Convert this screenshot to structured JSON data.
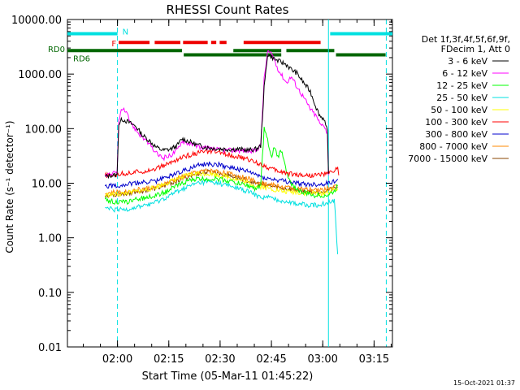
{
  "chart_data": {
    "type": "line",
    "title": "RHESSI Count Rates",
    "xlabel": "Start Time (05-Mar-11 01:45:22)",
    "ylabel": "Count Rate (s⁻¹ detector⁻¹)",
    "yscale": "log",
    "ylim": [
      0.01,
      10000
    ],
    "xlim_minutes": [
      0,
      95
    ],
    "x_ticks": [
      {
        "label": "02:00",
        "min": 14.63
      },
      {
        "label": "02:15",
        "min": 29.63
      },
      {
        "label": "02:30",
        "min": 44.63
      },
      {
        "label": "02:45",
        "min": 59.63
      },
      {
        "label": "03:00",
        "min": 74.63
      },
      {
        "label": "03:15",
        "min": 89.63
      }
    ],
    "y_ticks": [
      {
        "label": "0.01",
        "v": 0.01
      },
      {
        "label": "0.10",
        "v": 0.1
      },
      {
        "label": "1.00",
        "v": 1
      },
      {
        "label": "10.00",
        "v": 10
      },
      {
        "label": "100.00",
        "v": 100
      },
      {
        "label": "1000.00",
        "v": 1000
      },
      {
        "label": "10000.00",
        "v": 10000
      }
    ],
    "legend_position": "right",
    "legend_header": [
      "Det 1f,3f,4f,5f,6f,9f,",
      "FDecim 1, Att 0"
    ],
    "series": [
      {
        "name": "3 - 6 keV",
        "color": "#000000",
        "points": [
          [
            11,
            13
          ],
          [
            12.5,
            14
          ],
          [
            14.5,
            14
          ],
          [
            15,
            120
          ],
          [
            16,
            150
          ],
          [
            18,
            130
          ],
          [
            20,
            110
          ],
          [
            22,
            75
          ],
          [
            24,
            60
          ],
          [
            26,
            45
          ],
          [
            28,
            40
          ],
          [
            30,
            42
          ],
          [
            32,
            48
          ],
          [
            33.5,
            65
          ],
          [
            35,
            60
          ],
          [
            38,
            50
          ],
          [
            41,
            45
          ],
          [
            44,
            43
          ],
          [
            47,
            42
          ],
          [
            50,
            42
          ],
          [
            53,
            40
          ],
          [
            55,
            42
          ],
          [
            56.5,
            48
          ],
          [
            57.5,
            550
          ],
          [
            58.5,
            2300
          ],
          [
            60,
            2000
          ],
          [
            61,
            1800
          ],
          [
            62,
            1700
          ],
          [
            64,
            1500
          ],
          [
            65.5,
            1200
          ],
          [
            67,
            1050
          ],
          [
            69,
            700
          ],
          [
            71,
            480
          ],
          [
            73,
            220
          ],
          [
            74,
            165
          ],
          [
            75,
            155
          ],
          [
            76,
            85
          ],
          [
            76.3,
            15
          ]
        ]
      },
      {
        "name": "6 - 12 keV",
        "color": "#ff00ff",
        "points": [
          [
            11,
            14
          ],
          [
            12.5,
            15
          ],
          [
            14.5,
            15
          ],
          [
            15,
            150
          ],
          [
            16,
            230
          ],
          [
            17,
            200
          ],
          [
            19,
            115
          ],
          [
            21,
            80
          ],
          [
            23,
            60
          ],
          [
            26,
            35
          ],
          [
            28,
            29
          ],
          [
            30,
            32
          ],
          [
            32,
            40
          ],
          [
            33.5,
            60
          ],
          [
            35,
            55
          ],
          [
            38,
            47
          ],
          [
            41,
            43
          ],
          [
            44,
            41
          ],
          [
            47,
            40
          ],
          [
            50,
            40
          ],
          [
            53,
            39
          ],
          [
            55,
            40
          ],
          [
            56.5,
            50
          ],
          [
            57.5,
            800
          ],
          [
            58.5,
            2600
          ],
          [
            60,
            2200
          ],
          [
            61,
            1500
          ],
          [
            62,
            1100
          ],
          [
            64,
            700
          ],
          [
            65.5,
            900
          ],
          [
            67,
            600
          ],
          [
            69,
            380
          ],
          [
            71,
            230
          ],
          [
            73,
            160
          ],
          [
            74,
            115
          ],
          [
            75,
            120
          ],
          [
            76,
            80
          ],
          [
            76.3,
            14
          ]
        ]
      },
      {
        "name": "12 - 25 keV",
        "color": "#00ff00",
        "points": [
          [
            11,
            5
          ],
          [
            14,
            4.5
          ],
          [
            17,
            4.5
          ],
          [
            20,
            5
          ],
          [
            23,
            5.5
          ],
          [
            26,
            6
          ],
          [
            29,
            7
          ],
          [
            32,
            9
          ],
          [
            35,
            11
          ],
          [
            38,
            12
          ],
          [
            41,
            12
          ],
          [
            44,
            12
          ],
          [
            47,
            11
          ],
          [
            50,
            10
          ],
          [
            53,
            9
          ],
          [
            55,
            8
          ],
          [
            56.5,
            9
          ],
          [
            57.5,
            100
          ],
          [
            58.5,
            60
          ],
          [
            59.5,
            30
          ],
          [
            60.5,
            45
          ],
          [
            61.5,
            30
          ],
          [
            62.5,
            40
          ],
          [
            63.5,
            25
          ],
          [
            64.5,
            12
          ],
          [
            66,
            9
          ],
          [
            68,
            7
          ],
          [
            70,
            6.5
          ],
          [
            72,
            6
          ],
          [
            74,
            6
          ],
          [
            76,
            6
          ],
          [
            78,
            7
          ],
          [
            79,
            9
          ]
        ]
      },
      {
        "name": "25 - 50 keV",
        "color": "#00e0e0",
        "points": [
          [
            11,
            3.5
          ],
          [
            14,
            3.2
          ],
          [
            17,
            3.3
          ],
          [
            20,
            3.6
          ],
          [
            23,
            4
          ],
          [
            26,
            4.5
          ],
          [
            29,
            5.5
          ],
          [
            32,
            7
          ],
          [
            35,
            8.5
          ],
          [
            38,
            10
          ],
          [
            41,
            10.5
          ],
          [
            44,
            10
          ],
          [
            47,
            9
          ],
          [
            50,
            8
          ],
          [
            53,
            7
          ],
          [
            55,
            6
          ],
          [
            57,
            5.5
          ],
          [
            59,
            5.5
          ],
          [
            61,
            5
          ],
          [
            63,
            4.8
          ],
          [
            65,
            4.5
          ],
          [
            67,
            4.2
          ],
          [
            70,
            4
          ],
          [
            72,
            4
          ],
          [
            74,
            4
          ],
          [
            76,
            4.5
          ],
          [
            78,
            5
          ],
          [
            79,
            0.5
          ]
        ]
      },
      {
        "name": "50 - 100 keV",
        "color": "#ffff00",
        "points": [
          [
            11,
            6
          ],
          [
            14,
            6.2
          ],
          [
            17,
            6.5
          ],
          [
            20,
            7
          ],
          [
            23,
            7.5
          ],
          [
            26,
            8.5
          ],
          [
            29,
            10
          ],
          [
            32,
            12
          ],
          [
            35,
            14
          ],
          [
            38,
            15
          ],
          [
            41,
            15
          ],
          [
            44,
            14
          ],
          [
            47,
            13
          ],
          [
            50,
            11.5
          ],
          [
            53,
            10
          ],
          [
            55,
            9
          ],
          [
            57,
            8.5
          ],
          [
            59,
            8
          ],
          [
            61,
            7.5
          ],
          [
            63,
            7
          ],
          [
            65,
            7
          ],
          [
            67,
            6.8
          ],
          [
            70,
            6.5
          ],
          [
            72,
            6.5
          ],
          [
            74,
            6.5
          ],
          [
            76,
            6.8
          ],
          [
            78,
            7.5
          ],
          [
            79,
            8
          ]
        ]
      },
      {
        "name": "100 - 300 keV",
        "color": "#ff0000",
        "points": [
          [
            11,
            14
          ],
          [
            12.5,
            13.5
          ],
          [
            14,
            14.5
          ],
          [
            17,
            15
          ],
          [
            20,
            16
          ],
          [
            23,
            17
          ],
          [
            26,
            18.5
          ],
          [
            29,
            22
          ],
          [
            32,
            27
          ],
          [
            35,
            32
          ],
          [
            38,
            36
          ],
          [
            41,
            38
          ],
          [
            44,
            37
          ],
          [
            47,
            34
          ],
          [
            50,
            30
          ],
          [
            53,
            27
          ],
          [
            55,
            24
          ],
          [
            57,
            22
          ],
          [
            59,
            19
          ],
          [
            61,
            17
          ],
          [
            63,
            16
          ],
          [
            65,
            15
          ],
          [
            67,
            14.5
          ],
          [
            70,
            14
          ],
          [
            72,
            14
          ],
          [
            74,
            14.5
          ],
          [
            76,
            15
          ],
          [
            78,
            17
          ],
          [
            79,
            20
          ],
          [
            79.3,
            14
          ]
        ]
      },
      {
        "name": "300 - 800 keV",
        "color": "#0000cc",
        "points": [
          [
            11,
            9
          ],
          [
            14,
            9
          ],
          [
            17,
            9.5
          ],
          [
            20,
            10
          ],
          [
            23,
            10.5
          ],
          [
            26,
            11
          ],
          [
            29,
            13
          ],
          [
            32,
            15.5
          ],
          [
            35,
            18
          ],
          [
            38,
            21
          ],
          [
            41,
            22.5
          ],
          [
            44,
            22
          ],
          [
            47,
            20
          ],
          [
            50,
            18
          ],
          [
            53,
            16
          ],
          [
            55,
            14.5
          ],
          [
            57,
            13
          ],
          [
            59,
            12
          ],
          [
            61,
            11.5
          ],
          [
            63,
            11
          ],
          [
            65,
            10.5
          ],
          [
            67,
            10
          ],
          [
            70,
            9.5
          ],
          [
            72,
            9.5
          ],
          [
            74,
            9.5
          ],
          [
            76,
            10
          ],
          [
            78,
            11
          ],
          [
            79,
            12
          ]
        ]
      },
      {
        "name": "800 - 7000 keV",
        "color": "#ff8800",
        "points": [
          [
            11,
            6.5
          ],
          [
            14,
            6.8
          ],
          [
            17,
            7
          ],
          [
            20,
            7.5
          ],
          [
            23,
            8
          ],
          [
            26,
            8.5
          ],
          [
            29,
            10
          ],
          [
            32,
            12
          ],
          [
            35,
            14
          ],
          [
            38,
            16
          ],
          [
            41,
            17
          ],
          [
            44,
            16.5
          ],
          [
            47,
            15
          ],
          [
            50,
            13.5
          ],
          [
            53,
            12
          ],
          [
            55,
            11
          ],
          [
            57,
            10
          ],
          [
            59,
            9.5
          ],
          [
            61,
            9
          ],
          [
            63,
            8.5
          ],
          [
            65,
            8.2
          ],
          [
            67,
            8
          ],
          [
            70,
            7.5
          ],
          [
            72,
            7.5
          ],
          [
            74,
            7.5
          ],
          [
            76,
            8
          ],
          [
            78,
            8.5
          ],
          [
            79,
            9
          ]
        ]
      },
      {
        "name": "7000 - 15000 keV",
        "color": "#884400",
        "points": [
          [
            11,
            6
          ],
          [
            14,
            6.2
          ],
          [
            17,
            6.5
          ],
          [
            20,
            7
          ],
          [
            23,
            7.5
          ],
          [
            26,
            8
          ],
          [
            29,
            9.5
          ],
          [
            32,
            11
          ],
          [
            35,
            13
          ],
          [
            38,
            15
          ],
          [
            41,
            16
          ],
          [
            44,
            15.5
          ],
          [
            47,
            14
          ],
          [
            50,
            12.5
          ],
          [
            53,
            11
          ],
          [
            55,
            10
          ],
          [
            57,
            9.5
          ],
          [
            59,
            9
          ],
          [
            61,
            8.5
          ],
          [
            63,
            8
          ],
          [
            65,
            7.8
          ],
          [
            67,
            7.5
          ],
          [
            70,
            7
          ],
          [
            72,
            7
          ],
          [
            74,
            7
          ],
          [
            76,
            7.5
          ],
          [
            78,
            8
          ],
          [
            79,
            8.5
          ]
        ]
      }
    ],
    "state_bars": [
      {
        "label": "N",
        "color": "#00e0e0",
        "level": 5500,
        "segments": [
          [
            0,
            14.63
          ],
          [
            76.8,
            95
          ]
        ]
      },
      {
        "label": "F",
        "color": "#ee0000",
        "level": 3800,
        "segments": [
          [
            15,
            24
          ],
          [
            25.5,
            33
          ],
          [
            33.8,
            41
          ],
          [
            42,
            43.5
          ],
          [
            44.5,
            46.5
          ],
          [
            51.5,
            74
          ]
        ]
      },
      {
        "label": "RD0",
        "color": "#006600",
        "level": 2700,
        "segments": [
          [
            0,
            33.5
          ],
          [
            48.5,
            62.5
          ],
          [
            64,
            78
          ]
        ]
      },
      {
        "label": "RD6",
        "color": "#006600",
        "level": 2250,
        "segments": [
          [
            34,
            62.5
          ],
          [
            78.5,
            93
          ]
        ]
      }
    ],
    "vlines": [
      {
        "min": 14.63,
        "color": "#00e0e0",
        "style": "dashed"
      },
      {
        "min": 76.3,
        "color": "#00e0e0",
        "style": "solid"
      },
      {
        "min": 93.2,
        "color": "#00e0e0",
        "style": "dashed"
      }
    ]
  },
  "footer": {
    "timestamp": "15-Oct-2021 01:37"
  }
}
